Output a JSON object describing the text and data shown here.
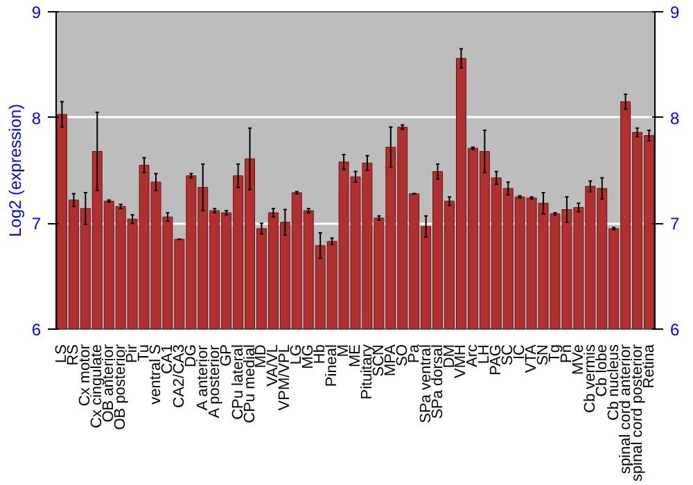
{
  "chart_data": {
    "type": "bar",
    "ylabel": "Log2 (expression)",
    "color": "#b03030",
    "categories": [
      "LS",
      "RS",
      "Cx motor",
      "Cx cingulate",
      "OB anterior",
      "OB posterior",
      "Pir",
      "Tu",
      "ventral S",
      "CA1",
      "CA2/CA3",
      "DG",
      "A anterior",
      "A posterior",
      "GP",
      "CPu lateral",
      "CPu medial",
      "MD",
      "VA/VL",
      "VPM/VPL",
      "LG",
      "MG",
      "Hb",
      "Pineal",
      "M",
      "ME",
      "Pituitary",
      "SCN",
      "MPA",
      "SO",
      "Pa",
      "SPa ventral",
      "SPa dorsal",
      "DM",
      "VMH",
      "Arc",
      "LH",
      "PAG",
      "SC",
      "IC",
      "VTA",
      "SN",
      "Tg",
      "Pn",
      "MVe",
      "Cb vermis",
      "Cb lobe",
      "Cb nucleus",
      "spinal cord anterior",
      "spinal cord posterior",
      "Retina"
    ],
    "values": [
      8.03,
      7.22,
      7.14,
      7.68,
      7.21,
      7.16,
      7.04,
      7.55,
      7.39,
      7.06,
      6.85,
      7.45,
      7.34,
      7.12,
      7.1,
      7.45,
      7.61,
      6.95,
      7.1,
      7.01,
      7.29,
      7.12,
      6.79,
      6.83,
      7.58,
      7.44,
      7.57,
      7.05,
      7.72,
      7.91,
      7.28,
      6.97,
      7.49,
      7.21,
      8.56,
      7.71,
      7.68,
      7.43,
      7.33,
      7.25,
      7.24,
      7.19,
      7.09,
      7.13,
      7.15,
      7.35,
      7.33,
      6.95,
      8.15,
      7.86,
      7.83
    ],
    "errors": [
      0.12,
      0.06,
      0.15,
      0.37,
      0.01,
      0.02,
      0.04,
      0.07,
      0.08,
      0.04,
      0,
      0.02,
      0.22,
      0.02,
      0.02,
      0.11,
      0.29,
      0.05,
      0.04,
      0.12,
      0.01,
      0.02,
      0.12,
      0.03,
      0.07,
      0.05,
      0.07,
      0.02,
      0.19,
      0.02,
      0,
      0.1,
      0.07,
      0.04,
      0.09,
      0.01,
      0.2,
      0.06,
      0.06,
      0.01,
      0.01,
      0.1,
      0.01,
      0.12,
      0.04,
      0.05,
      0.1,
      0.01,
      0.07,
      0.04,
      0.05
    ],
    "ylim": [
      6,
      9
    ],
    "yticks": [
      6,
      7,
      8,
      9
    ],
    "y2lim": [
      6,
      9
    ],
    "y2ticks": [
      6,
      7,
      8,
      9
    ],
    "grid": "y"
  }
}
